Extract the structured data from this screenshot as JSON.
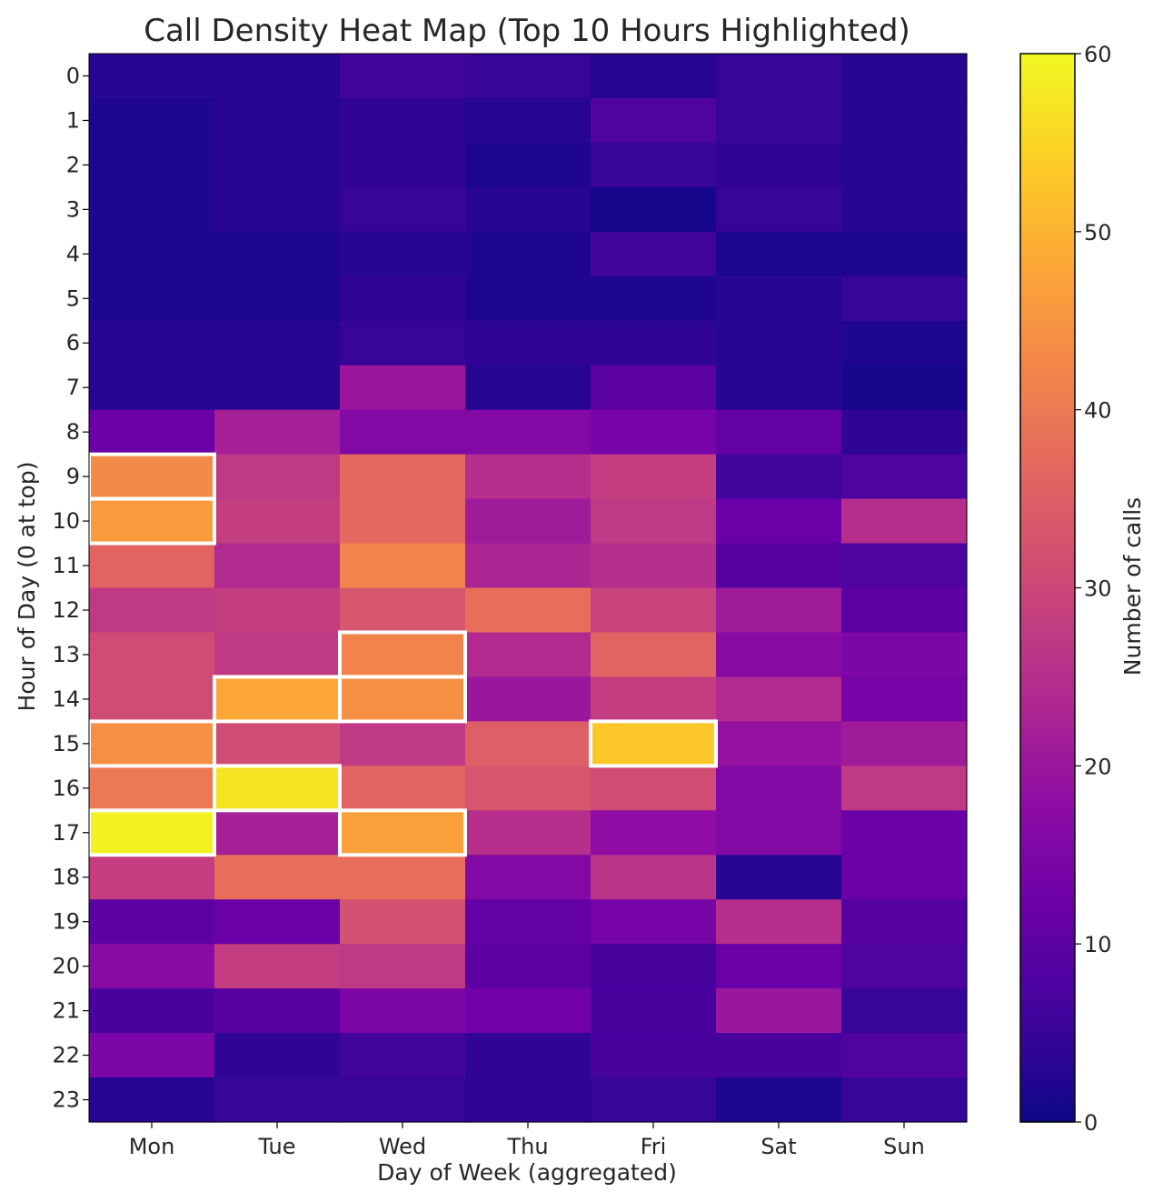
{
  "chart_data": {
    "type": "heatmap",
    "title": "Call Density Heat Map (Top 10 Hours Highlighted)",
    "xlabel": "Day of Week (aggregated)",
    "ylabel": "Hour of Day (0 at top)",
    "x_categories": [
      "Mon",
      "Tue",
      "Wed",
      "Thu",
      "Fri",
      "Sat",
      "Sun"
    ],
    "y_categories": [
      "0",
      "1",
      "2",
      "3",
      "4",
      "5",
      "6",
      "7",
      "8",
      "9",
      "10",
      "11",
      "12",
      "13",
      "14",
      "15",
      "16",
      "17",
      "18",
      "19",
      "20",
      "21",
      "22",
      "23"
    ],
    "values": [
      [
        3,
        3,
        6,
        5,
        3,
        5,
        3
      ],
      [
        2,
        3,
        4,
        3,
        8,
        5,
        3
      ],
      [
        2,
        3,
        4,
        2,
        5,
        4,
        3
      ],
      [
        2,
        3,
        5,
        3,
        1,
        5,
        3
      ],
      [
        2,
        2,
        3,
        2,
        6,
        2,
        2
      ],
      [
        2,
        2,
        4,
        2,
        2,
        3,
        5
      ],
      [
        3,
        3,
        5,
        4,
        4,
        3,
        2
      ],
      [
        3,
        3,
        20,
        3,
        10,
        3,
        1
      ],
      [
        12,
        22,
        16,
        16,
        14,
        11,
        4
      ],
      [
        43,
        27,
        37,
        25,
        28,
        6,
        8
      ],
      [
        46,
        28,
        37,
        21,
        27,
        12,
        25
      ],
      [
        36,
        24,
        42,
        23,
        25,
        9,
        8
      ],
      [
        27,
        28,
        33,
        38,
        29,
        21,
        10
      ],
      [
        31,
        27,
        42,
        24,
        36,
        17,
        15
      ],
      [
        31,
        48,
        44,
        20,
        28,
        24,
        14
      ],
      [
        44,
        31,
        27,
        35,
        53,
        19,
        21
      ],
      [
        40,
        57,
        36,
        33,
        31,
        16,
        27
      ],
      [
        59,
        22,
        47,
        25,
        18,
        16,
        12
      ],
      [
        28,
        38,
        38,
        16,
        26,
        3,
        12
      ],
      [
        10,
        12,
        32,
        11,
        14,
        25,
        9
      ],
      [
        17,
        28,
        27,
        10,
        7,
        12,
        8
      ],
      [
        7,
        9,
        15,
        13,
        7,
        20,
        5
      ],
      [
        15,
        4,
        6,
        4,
        7,
        7,
        8
      ],
      [
        3,
        5,
        5,
        4,
        5,
        2,
        5
      ]
    ],
    "vmin": 0,
    "vmax": 60,
    "colormap": "plasma",
    "colorbar_label": "Number of calls",
    "colorbar_ticks": [
      "0",
      "10",
      "20",
      "30",
      "40",
      "50",
      "60"
    ],
    "highlighted_cells": [
      {
        "day": "Mon",
        "hour": 9
      },
      {
        "day": "Mon",
        "hour": 10
      },
      {
        "day": "Wed",
        "hour": 13
      },
      {
        "day": "Tue",
        "hour": 14
      },
      {
        "day": "Wed",
        "hour": 14
      },
      {
        "day": "Fri",
        "hour": 15
      },
      {
        "day": "Mon",
        "hour": 15
      },
      {
        "day": "Tue",
        "hour": 16
      },
      {
        "day": "Mon",
        "hour": 17
      },
      {
        "day": "Wed",
        "hour": 17
      }
    ],
    "highlight_color": "#ffffff",
    "grid": false
  }
}
